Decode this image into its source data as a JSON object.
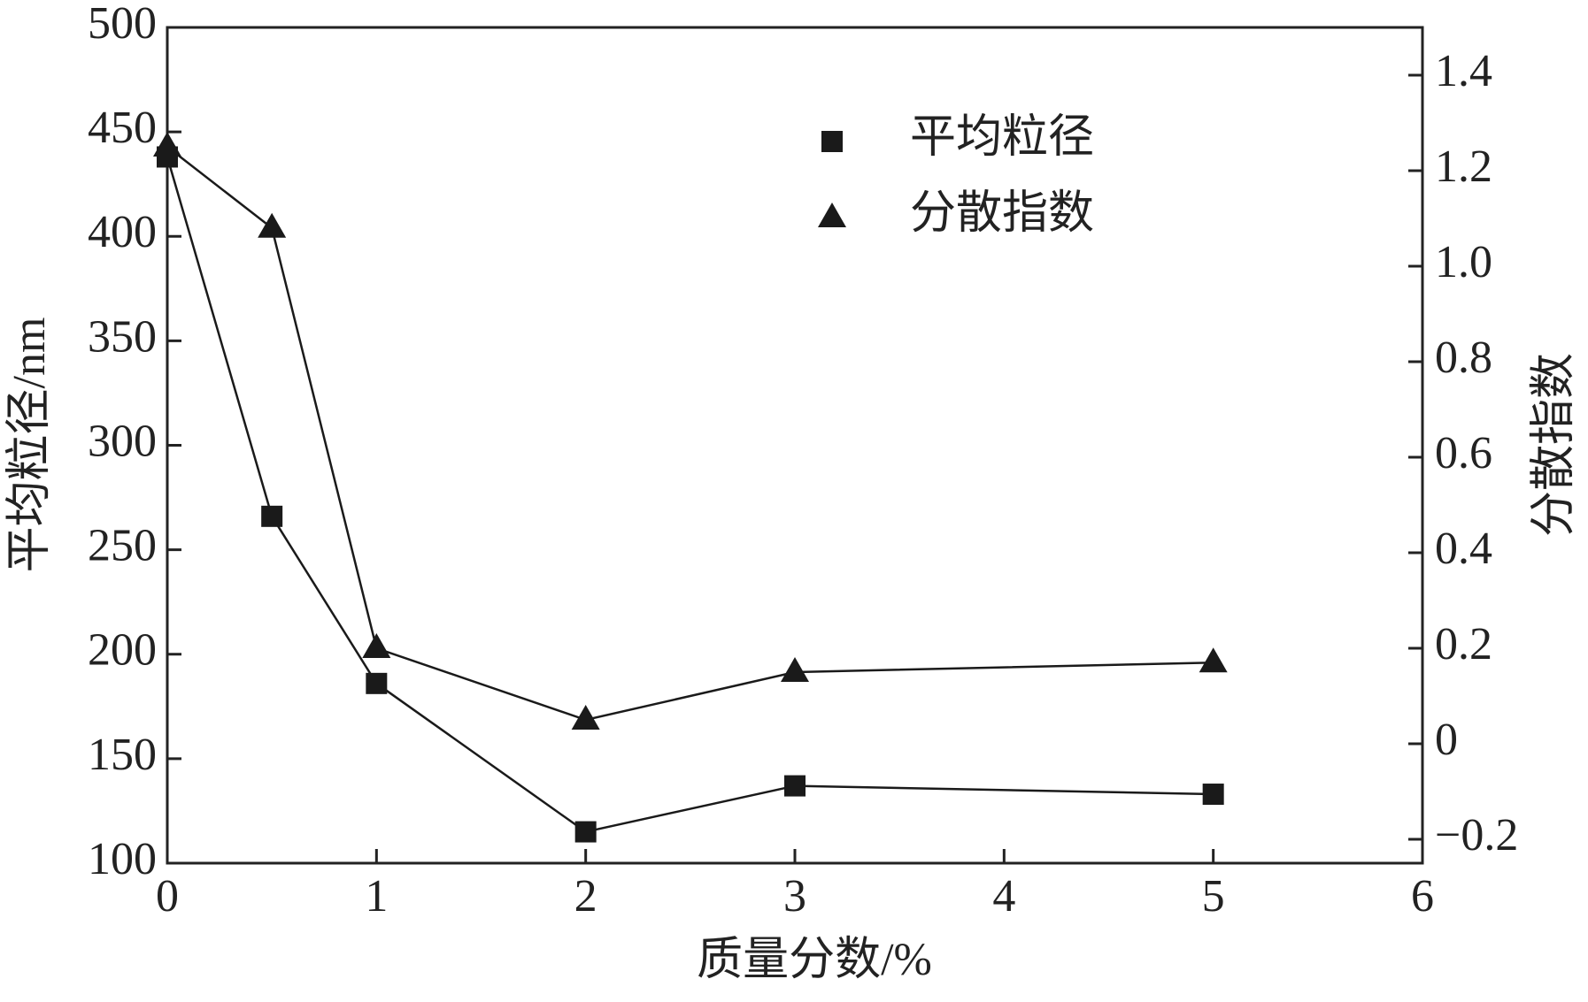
{
  "chart_data": {
    "type": "line",
    "x_label": "质量分数/%",
    "y_label": "平均粒径/nm",
    "y2_label": "分散指数",
    "x": [
      0,
      0.5,
      1,
      2,
      3,
      5
    ],
    "series": [
      {
        "name": "平均粒径",
        "color": "#1a1a1a",
        "marker": "square",
        "values": [
          438,
          266,
          186,
          115,
          137,
          133
        ]
      },
      {
        "name": "分散指数",
        "color": "#1a1a1a",
        "marker": "triangle",
        "axis": "y2",
        "values": [
          1.25,
          1.08,
          0.2,
          0.05,
          0.15,
          0.17
        ]
      }
    ],
    "xlim": [
      0,
      6
    ],
    "xticks": [
      0,
      1,
      2,
      3,
      4,
      5,
      6
    ],
    "ylim": [
      100,
      500
    ],
    "yticks": [
      100,
      150,
      200,
      250,
      300,
      350,
      400,
      450,
      500
    ],
    "y2lim": [
      -0.25,
      1.5
    ],
    "y2ticks": [
      {
        "value": -0.2,
        "label": "−0.2"
      },
      0,
      0.2,
      0.4,
      0.6,
      0.8,
      {
        "value": 1.0,
        "label": "1.0"
      },
      1.2,
      1.4
    ]
  }
}
